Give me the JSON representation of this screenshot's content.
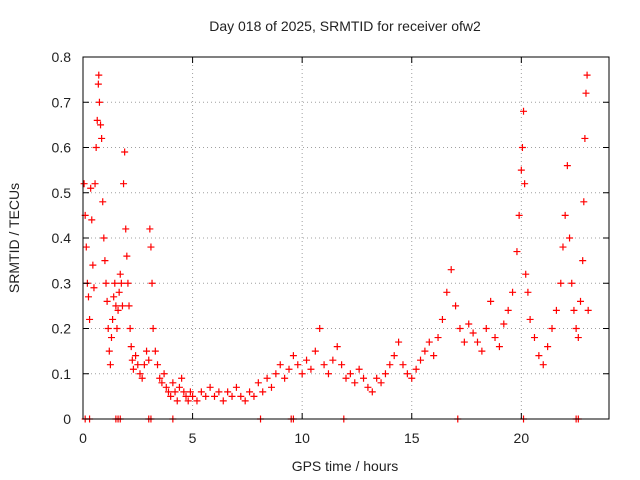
{
  "chart_data": {
    "type": "scatter",
    "title": "Day 018 of 2025, SRMTID for receiver ofw2",
    "xlabel": "GPS time / hours",
    "ylabel": "SRMTID / TECUs",
    "xlim": [
      0,
      24
    ],
    "ylim": [
      0,
      0.8
    ],
    "xticks": [
      "0",
      "5",
      "10",
      "15",
      "20"
    ],
    "yticks": [
      "0",
      "0.1",
      "0.2",
      "0.3",
      "0.4",
      "0.5",
      "0.6",
      "0.7",
      "0.8"
    ],
    "grid": true,
    "marker": "plus",
    "color": "#ff0000",
    "series": [
      {
        "name": "SRMTID",
        "points": [
          [
            0.05,
            0.52
          ],
          [
            0.1,
            0.45
          ],
          [
            0.15,
            0.38
          ],
          [
            0.2,
            0.3
          ],
          [
            0.25,
            0.27
          ],
          [
            0.3,
            0.22
          ],
          [
            0.35,
            0.51
          ],
          [
            0.4,
            0.44
          ],
          [
            0.45,
            0.34
          ],
          [
            0.5,
            0.29
          ],
          [
            0.55,
            0.52
          ],
          [
            0.6,
            0.6
          ],
          [
            0.65,
            0.66
          ],
          [
            0.7,
            0.74
          ],
          [
            0.72,
            0.76
          ],
          [
            0.75,
            0.7
          ],
          [
            0.8,
            0.65
          ],
          [
            0.85,
            0.62
          ],
          [
            0.9,
            0.48
          ],
          [
            0.95,
            0.4
          ],
          [
            1.0,
            0.35
          ],
          [
            1.05,
            0.3
          ],
          [
            1.1,
            0.26
          ],
          [
            1.15,
            0.2
          ],
          [
            1.2,
            0.15
          ],
          [
            1.25,
            0.12
          ],
          [
            1.3,
            0.18
          ],
          [
            1.35,
            0.22
          ],
          [
            1.4,
            0.27
          ],
          [
            1.45,
            0.3
          ],
          [
            1.5,
            0.25
          ],
          [
            1.55,
            0.2
          ],
          [
            1.6,
            0.24
          ],
          [
            1.65,
            0.28
          ],
          [
            1.7,
            0.32
          ],
          [
            1.75,
            0.3
          ],
          [
            1.8,
            0.25
          ],
          [
            1.85,
            0.52
          ],
          [
            1.9,
            0.59
          ],
          [
            1.95,
            0.42
          ],
          [
            2.0,
            0.36
          ],
          [
            2.05,
            0.3
          ],
          [
            2.1,
            0.25
          ],
          [
            2.15,
            0.2
          ],
          [
            2.2,
            0.16
          ],
          [
            2.25,
            0.13
          ],
          [
            2.3,
            0.11
          ],
          [
            2.4,
            0.14
          ],
          [
            2.5,
            0.12
          ],
          [
            2.6,
            0.1
          ],
          [
            2.7,
            0.09
          ],
          [
            2.8,
            0.12
          ],
          [
            2.9,
            0.15
          ],
          [
            3.0,
            0.13
          ],
          [
            3.05,
            0.42
          ],
          [
            3.1,
            0.38
          ],
          [
            3.15,
            0.3
          ],
          [
            3.2,
            0.2
          ],
          [
            3.3,
            0.15
          ],
          [
            3.4,
            0.12
          ],
          [
            3.5,
            0.09
          ],
          [
            3.6,
            0.08
          ],
          [
            3.7,
            0.1
          ],
          [
            3.8,
            0.07
          ],
          [
            3.9,
            0.06
          ],
          [
            4.0,
            0.05
          ],
          [
            4.1,
            0.08
          ],
          [
            4.2,
            0.06
          ],
          [
            4.3,
            0.04
          ],
          [
            4.4,
            0.07
          ],
          [
            4.5,
            0.09
          ],
          [
            4.6,
            0.06
          ],
          [
            4.7,
            0.05
          ],
          [
            4.8,
            0.04
          ],
          [
            4.9,
            0.06
          ],
          [
            5.0,
            0.05
          ],
          [
            5.2,
            0.04
          ],
          [
            5.4,
            0.06
          ],
          [
            5.6,
            0.05
          ],
          [
            5.8,
            0.07
          ],
          [
            6.0,
            0.05
          ],
          [
            6.2,
            0.06
          ],
          [
            6.4,
            0.04
          ],
          [
            6.6,
            0.06
          ],
          [
            6.8,
            0.05
          ],
          [
            7.0,
            0.07
          ],
          [
            7.2,
            0.05
          ],
          [
            7.4,
            0.04
          ],
          [
            7.6,
            0.06
          ],
          [
            7.8,
            0.05
          ],
          [
            8.0,
            0.08
          ],
          [
            8.2,
            0.06
          ],
          [
            8.4,
            0.09
          ],
          [
            8.6,
            0.07
          ],
          [
            8.8,
            0.1
          ],
          [
            9.0,
            0.12
          ],
          [
            9.2,
            0.09
          ],
          [
            9.4,
            0.11
          ],
          [
            9.6,
            0.14
          ],
          [
            9.8,
            0.12
          ],
          [
            10.0,
            0.1
          ],
          [
            10.2,
            0.13
          ],
          [
            10.4,
            0.11
          ],
          [
            10.6,
            0.15
          ],
          [
            10.8,
            0.2
          ],
          [
            11.0,
            0.12
          ],
          [
            11.2,
            0.1
          ],
          [
            11.4,
            0.13
          ],
          [
            11.6,
            0.16
          ],
          [
            11.8,
            0.12
          ],
          [
            12.0,
            0.09
          ],
          [
            12.2,
            0.1
          ],
          [
            12.4,
            0.08
          ],
          [
            12.6,
            0.11
          ],
          [
            12.8,
            0.09
          ],
          [
            13.0,
            0.07
          ],
          [
            13.2,
            0.06
          ],
          [
            13.4,
            0.09
          ],
          [
            13.6,
            0.08
          ],
          [
            13.8,
            0.1
          ],
          [
            14.0,
            0.12
          ],
          [
            14.2,
            0.14
          ],
          [
            14.4,
            0.17
          ],
          [
            14.6,
            0.12
          ],
          [
            14.8,
            0.1
          ],
          [
            15.0,
            0.09
          ],
          [
            15.2,
            0.11
          ],
          [
            15.4,
            0.13
          ],
          [
            15.6,
            0.15
          ],
          [
            15.8,
            0.17
          ],
          [
            16.0,
            0.14
          ],
          [
            16.2,
            0.18
          ],
          [
            16.4,
            0.22
          ],
          [
            16.6,
            0.28
          ],
          [
            16.8,
            0.33
          ],
          [
            17.0,
            0.25
          ],
          [
            17.2,
            0.2
          ],
          [
            17.4,
            0.17
          ],
          [
            17.6,
            0.21
          ],
          [
            17.8,
            0.19
          ],
          [
            18.0,
            0.17
          ],
          [
            18.2,
            0.15
          ],
          [
            18.4,
            0.2
          ],
          [
            18.6,
            0.26
          ],
          [
            18.8,
            0.18
          ],
          [
            19.0,
            0.16
          ],
          [
            19.2,
            0.21
          ],
          [
            19.4,
            0.24
          ],
          [
            19.6,
            0.28
          ],
          [
            19.8,
            0.37
          ],
          [
            19.9,
            0.45
          ],
          [
            20.0,
            0.55
          ],
          [
            20.05,
            0.6
          ],
          [
            20.1,
            0.68
          ],
          [
            20.15,
            0.52
          ],
          [
            20.2,
            0.32
          ],
          [
            20.3,
            0.28
          ],
          [
            20.4,
            0.22
          ],
          [
            20.6,
            0.18
          ],
          [
            20.8,
            0.14
          ],
          [
            21.0,
            0.12
          ],
          [
            21.2,
            0.16
          ],
          [
            21.4,
            0.2
          ],
          [
            21.6,
            0.24
          ],
          [
            21.8,
            0.3
          ],
          [
            21.9,
            0.38
          ],
          [
            22.0,
            0.45
          ],
          [
            22.1,
            0.56
          ],
          [
            22.2,
            0.4
          ],
          [
            22.3,
            0.3
          ],
          [
            22.4,
            0.24
          ],
          [
            22.5,
            0.2
          ],
          [
            22.6,
            0.18
          ],
          [
            22.7,
            0.26
          ],
          [
            22.8,
            0.35
          ],
          [
            22.85,
            0.48
          ],
          [
            22.9,
            0.62
          ],
          [
            22.95,
            0.72
          ],
          [
            23.0,
            0.76
          ],
          [
            23.05,
            0.24
          ],
          [
            0.1,
            0.0
          ],
          [
            0.3,
            0.0
          ],
          [
            1.5,
            0.0
          ],
          [
            1.6,
            0.0
          ],
          [
            1.7,
            0.0
          ],
          [
            3.0,
            0.0
          ],
          [
            3.1,
            0.0
          ],
          [
            4.1,
            0.0
          ],
          [
            8.1,
            0.0
          ],
          [
            9.5,
            0.0
          ],
          [
            9.6,
            0.0
          ],
          [
            11.9,
            0.0
          ],
          [
            17.1,
            0.0
          ],
          [
            20.1,
            0.0
          ],
          [
            22.5,
            0.0
          ],
          [
            22.6,
            0.0
          ]
        ]
      }
    ]
  }
}
